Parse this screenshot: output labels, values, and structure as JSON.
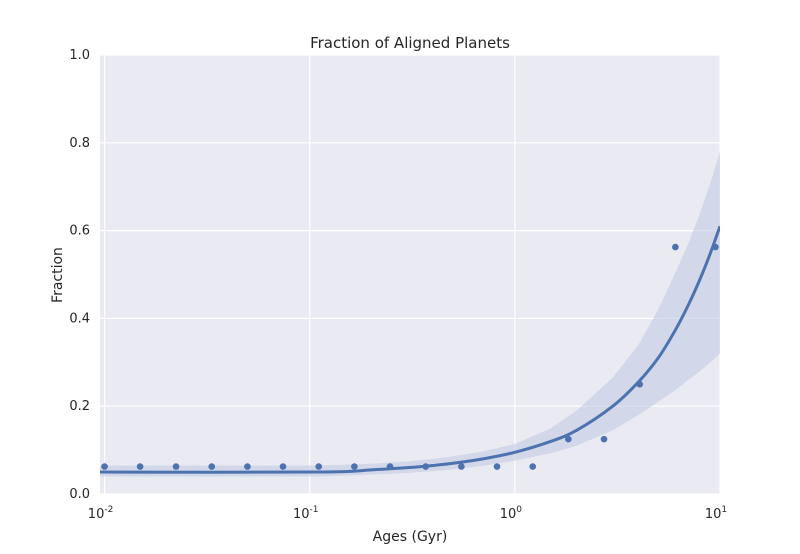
{
  "chart_data": {
    "type": "scatter",
    "title": "Fraction of Aligned Planets",
    "xlabel": "Ages (Gyr)",
    "ylabel": "Fraction",
    "xscale": "log",
    "xlim": [
      0.0095,
      10
    ],
    "ylim": [
      0.0,
      1.0
    ],
    "grid": true,
    "legend": "none",
    "colors": {
      "background": "#eaeaf2",
      "grid": "#ffffff",
      "series": "#4c72b0",
      "band": "#c5cee4",
      "text": "#262626"
    },
    "x_ticks": [
      {
        "value": 0.01,
        "base": "10",
        "exp": "-2"
      },
      {
        "value": 0.1,
        "base": "10",
        "exp": "-1"
      },
      {
        "value": 1,
        "base": "10",
        "exp": "0"
      },
      {
        "value": 10,
        "base": "10",
        "exp": "1"
      }
    ],
    "y_ticks": [
      "0.0",
      "0.2",
      "0.4",
      "0.6",
      "0.8",
      "1.0"
    ],
    "series": [
      {
        "kind": "points",
        "x": [
          0.01,
          0.0149,
          0.0223,
          0.0333,
          0.0497,
          0.0741,
          0.1106,
          0.1651,
          0.2463,
          0.3676,
          0.5486,
          0.8187,
          1.2218,
          1.8233,
          2.721,
          4.0607,
          6.06,
          9.5
        ],
        "y": [
          0.0625,
          0.0625,
          0.0625,
          0.0625,
          0.0625,
          0.0625,
          0.0625,
          0.0625,
          0.0625,
          0.0625,
          0.0625,
          0.0625,
          0.0625,
          0.125,
          0.125,
          0.25,
          0.5625,
          0.5625
        ]
      },
      {
        "kind": "fit",
        "x": [
          0.0095,
          0.11,
          0.2,
          0.3,
          0.4,
          0.5,
          0.7,
          1.0,
          1.5,
          2.0,
          3.0,
          4.0,
          5.0,
          6.0,
          7.0,
          8.0,
          9.0,
          10.0
        ],
        "y": [
          0.05,
          0.05,
          0.055,
          0.06,
          0.065,
          0.07,
          0.08,
          0.095,
          0.12,
          0.145,
          0.2,
          0.255,
          0.31,
          0.37,
          0.43,
          0.49,
          0.55,
          0.61
        ],
        "lower": [
          0.04,
          0.04,
          0.044,
          0.048,
          0.052,
          0.056,
          0.064,
          0.076,
          0.093,
          0.11,
          0.145,
          0.18,
          0.21,
          0.235,
          0.26,
          0.28,
          0.3,
          0.32
        ],
        "upper": [
          0.065,
          0.065,
          0.069,
          0.074,
          0.08,
          0.086,
          0.097,
          0.114,
          0.15,
          0.19,
          0.265,
          0.34,
          0.42,
          0.5,
          0.57,
          0.64,
          0.71,
          0.78
        ]
      }
    ]
  }
}
